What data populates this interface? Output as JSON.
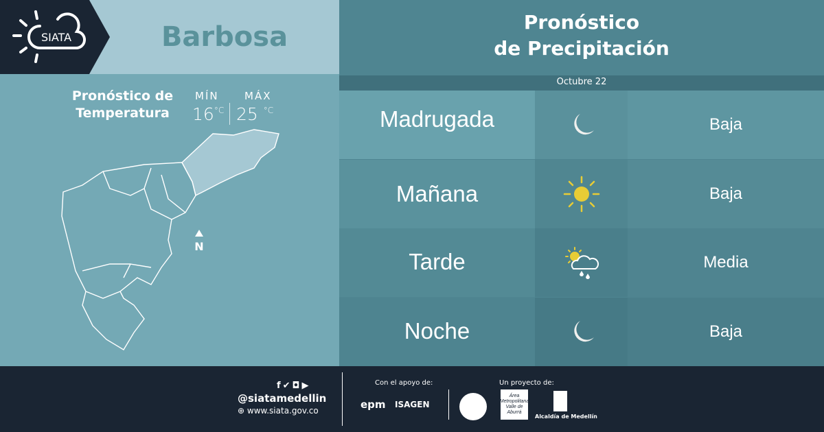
{
  "brand": {
    "logo_text": "SIATA"
  },
  "location": "Barbosa",
  "temperature": {
    "title_line1": "Pronóstico de",
    "title_line2": "Temperatura",
    "min_label": "MÍN",
    "max_label": "MÁX",
    "min": "16",
    "max": "25",
    "unit": "°C"
  },
  "map": {
    "north_label": "N"
  },
  "precipitation": {
    "title_line1": "Pronóstico",
    "title_line2": "de Precipitación",
    "date": "Octubre 22",
    "rows": [
      {
        "period": "Madrugada",
        "icon": "moon-icon",
        "level": "Baja"
      },
      {
        "period": "Mañana",
        "icon": "sun-icon",
        "level": "Baja"
      },
      {
        "period": "Tarde",
        "icon": "sun-cloud-rain-icon",
        "level": "Media"
      },
      {
        "period": "Noche",
        "icon": "moon-icon",
        "level": "Baja"
      }
    ]
  },
  "footer": {
    "handle": "@siatamedellin",
    "website": "www.siata.gov.co",
    "support_label": "Con el apoyo de:",
    "support_logos": [
      "epm",
      "ISAGEN"
    ],
    "project_label": "Un proyecto de:",
    "project_logos": [
      "Área Metropolitana Valle de Aburrá",
      "Alcaldía de Medellín"
    ]
  },
  "colors": {
    "dark": "#1a2533",
    "sun": "#e8cc35",
    "moon": "#f0f0ee"
  }
}
